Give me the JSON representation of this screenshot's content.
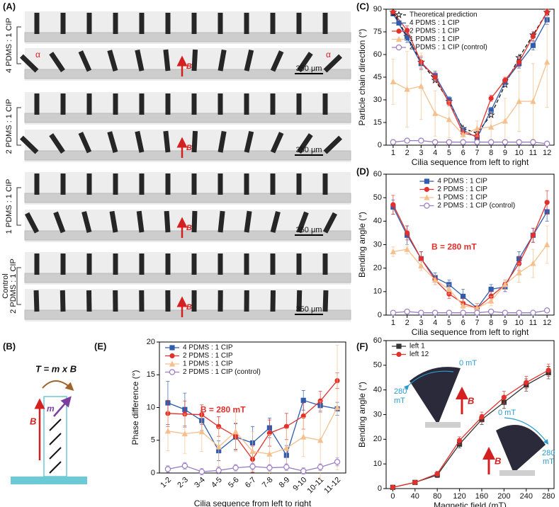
{
  "figure": {
    "panel_a": {
      "label": "(A)",
      "groups": [
        "4 PDMS : 1 CIP",
        "2 PDMS : 1 CIP",
        "1 PDMS : 1 CIP",
        "2 PDMS : 1 CIP"
      ],
      "control": "Control",
      "scale_bar": "350 μm",
      "field": "B",
      "angle": "α"
    },
    "panel_b": {
      "label": "(B)",
      "equation": "T = m x B",
      "moment": "m",
      "field": "B"
    },
    "panel_f_inset": {
      "start": "0 mT",
      "end_value": "280",
      "end_unit": "mT",
      "field": "B"
    }
  },
  "chart_data": [
    {
      "type": "line",
      "panel": "(C)",
      "ylabel": "Particle chain direction (°)",
      "xlabel": "Cilia sequence from left to right",
      "x": [
        1,
        2,
        3,
        4,
        5,
        6,
        7,
        8,
        9,
        10,
        11,
        12
      ],
      "xlim": [
        0.5,
        12.5
      ],
      "xticks": [
        1,
        2,
        3,
        4,
        5,
        6,
        7,
        8,
        9,
        10,
        11,
        12
      ],
      "ylim": [
        0,
        90
      ],
      "yticks": [
        0,
        15,
        30,
        45,
        60,
        75,
        90
      ],
      "legend": "upper left",
      "series": [
        {
          "name": "Theoretical prediction",
          "color": "#111111",
          "marker": "star",
          "dash": true,
          "values": [
            88,
            72,
            55,
            43,
            29,
            11,
            8,
            20,
            40,
            58,
            73,
            88
          ]
        },
        {
          "name": "4 PDMS : 1 CIP",
          "color": "#2f5cae",
          "marker": "square",
          "values": [
            87,
            71,
            54,
            46,
            30,
            10,
            5,
            23,
            42,
            54,
            66,
            83
          ],
          "errors": [
            1,
            3,
            4,
            3,
            2,
            2,
            2,
            2,
            2,
            3,
            3,
            3
          ]
        },
        {
          "name": "2 PDMS : 1 CIP",
          "color": "#e3302c",
          "marker": "circle",
          "values": [
            88,
            76,
            55,
            45,
            28,
            8,
            6,
            31,
            43,
            55,
            72,
            88
          ],
          "errors": [
            1,
            3,
            4,
            3,
            2,
            2,
            2,
            2,
            2,
            3,
            3,
            2
          ]
        },
        {
          "name": "1 PDMS : 1 CIP",
          "color": "#f6bf8c",
          "marker": "triangle",
          "values": [
            42,
            37,
            39,
            21,
            17,
            7,
            11,
            12,
            16,
            29,
            29,
            55
          ],
          "errors": [
            15,
            25,
            22,
            15,
            12,
            5,
            5,
            10,
            15,
            20,
            25,
            30
          ]
        },
        {
          "name": "2 PDMS : 1 CIP (control)",
          "color": "#9b7cc4",
          "marker": "open-circle",
          "values": [
            2,
            3,
            3,
            2,
            2,
            2,
            2,
            2,
            2,
            2,
            2,
            1
          ],
          "errors": [
            1,
            1,
            1,
            1,
            1,
            1,
            1,
            1,
            1,
            1,
            1,
            1
          ]
        }
      ]
    },
    {
      "type": "line",
      "panel": "(D)",
      "ylabel": "Bending angle (°)",
      "xlabel": "Cilia sequence from left to right",
      "annotation": "B = 280 mT",
      "x": [
        1,
        2,
        3,
        4,
        5,
        6,
        7,
        8,
        9,
        10,
        11,
        12
      ],
      "xlim": [
        0.5,
        12.5
      ],
      "xticks": [
        1,
        2,
        3,
        4,
        5,
        6,
        7,
        8,
        9,
        10,
        11,
        12
      ],
      "ylim": [
        0,
        60
      ],
      "yticks": [
        0,
        10,
        20,
        30,
        40,
        50,
        60
      ],
      "legend": "upper center",
      "series": [
        {
          "name": "4 PDMS : 1 CIP",
          "color": "#2f5cae",
          "marker": "square",
          "values": [
            46,
            34,
            24,
            16,
            13,
            8,
            3,
            11,
            12,
            24,
            34,
            44
          ],
          "errors": [
            3,
            4,
            3,
            2,
            2,
            3,
            2,
            2,
            2,
            3,
            3,
            4
          ]
        },
        {
          "name": "2 PDMS : 1 CIP",
          "color": "#e3302c",
          "marker": "circle",
          "values": [
            47,
            35,
            24,
            15,
            9,
            5,
            3,
            8,
            13,
            22,
            34,
            48
          ],
          "errors": [
            4,
            3,
            3,
            2,
            2,
            2,
            2,
            2,
            2,
            3,
            3,
            5
          ]
        },
        {
          "name": "1 PDMS : 1 CIP",
          "color": "#f6bf8c",
          "marker": "triangle",
          "values": [
            27,
            28,
            21,
            15,
            11,
            4,
            3,
            6,
            13,
            18,
            22,
            30
          ],
          "errors": [
            2,
            2,
            2,
            2,
            2,
            2,
            2,
            2,
            2,
            4,
            6,
            8
          ]
        },
        {
          "name": "2 PDMS : 1 CIP (control)",
          "color": "#9b7cc4",
          "marker": "open-circle",
          "values": [
            1,
            1.5,
            1,
            1,
            1,
            1,
            1,
            1.5,
            1,
            1,
            1,
            2
          ],
          "errors": [
            0.5,
            0.5,
            0.5,
            0.5,
            0.5,
            0.5,
            0.5,
            0.5,
            0.5,
            0.5,
            0.5,
            0.5
          ]
        }
      ]
    },
    {
      "type": "line",
      "panel": "(E)",
      "ylabel": "Phase difference (°)",
      "xlabel": "Cilia sequence from left to right",
      "annotation": "B = 280 mT",
      "categories": [
        "1-2",
        "2-3",
        "3-4",
        "4-5",
        "5-6",
        "6-7",
        "7-8",
        "8-9",
        "9-10",
        "10-11",
        "11-12"
      ],
      "ylim": [
        0,
        20
      ],
      "yticks": [
        0,
        5,
        10,
        15,
        20
      ],
      "legend": "upper left",
      "series": [
        {
          "name": "4 PDMS : 1 CIP",
          "color": "#2f5cae",
          "marker": "square",
          "values": [
            10.7,
            9.7,
            8,
            3.4,
            5.5,
            4.6,
            6.9,
            2.7,
            11.1,
            10.3,
            9.8
          ],
          "errors": [
            3.3,
            2.5,
            1.5,
            1.5,
            2,
            2.5,
            1.5,
            1.5,
            1.5,
            1,
            1
          ]
        },
        {
          "name": "2 PDMS : 1 CIP",
          "color": "#e3302c",
          "marker": "circle",
          "values": [
            9.1,
            9.0,
            8.9,
            7.1,
            5.6,
            2.1,
            6.1,
            7.1,
            8.7,
            11.0,
            14.1
          ],
          "errors": [
            2,
            2,
            1.5,
            1.5,
            2,
            2,
            2,
            2,
            2,
            1.5,
            1.2
          ]
        },
        {
          "name": "1 PDMS : 1 CIP",
          "color": "#f6bf8c",
          "marker": "triangle",
          "values": [
            6.4,
            6.0,
            6.3,
            4.0,
            6.3,
            3.3,
            2.9,
            3.8,
            5.5,
            5.0,
            10.0
          ],
          "errors": [
            3,
            3,
            3,
            3,
            3,
            3,
            3,
            3,
            3,
            6,
            9.5
          ]
        },
        {
          "name": "2 PDMS : 1 CIP (control)",
          "color": "#9b7cc4",
          "marker": "open-circle",
          "values": [
            0.6,
            1.1,
            0.2,
            0.4,
            0.8,
            1.0,
            0.8,
            0.9,
            0.3,
            0.9,
            1.7
          ],
          "errors": [
            0.5,
            0.5,
            0.5,
            0.5,
            0.5,
            0.5,
            0.5,
            0.5,
            0.5,
            0.5,
            0.6
          ]
        }
      ]
    },
    {
      "type": "line",
      "panel": "(F)",
      "ylabel": "Bending angle (°)",
      "xlabel": "Magnetic field (mT)",
      "x": [
        0,
        40,
        80,
        120,
        160,
        200,
        240,
        280
      ],
      "xlim": [
        -12,
        290
      ],
      "xticks": [
        0,
        40,
        80,
        120,
        160,
        200,
        240,
        280
      ],
      "ylim": [
        0,
        60
      ],
      "yticks": [
        0,
        10,
        20,
        30,
        40,
        50,
        60
      ],
      "legend": "upper left",
      "series": [
        {
          "name": "left 1",
          "color": "#333333",
          "marker": "square",
          "values": [
            0.5,
            2.5,
            5.5,
            18,
            28,
            35,
            42,
            47
          ],
          "errors": [
            0.3,
            0.5,
            1,
            1.5,
            2,
            2.5,
            2.5,
            2.5
          ]
        },
        {
          "name": "left 12",
          "color": "#e3302c",
          "marker": "circle",
          "values": [
            0.5,
            2.5,
            6,
            19.5,
            29,
            37,
            43,
            48
          ],
          "errors": [
            0.3,
            0.5,
            1,
            1.5,
            2,
            2.5,
            2.5,
            2.5
          ]
        }
      ]
    }
  ]
}
